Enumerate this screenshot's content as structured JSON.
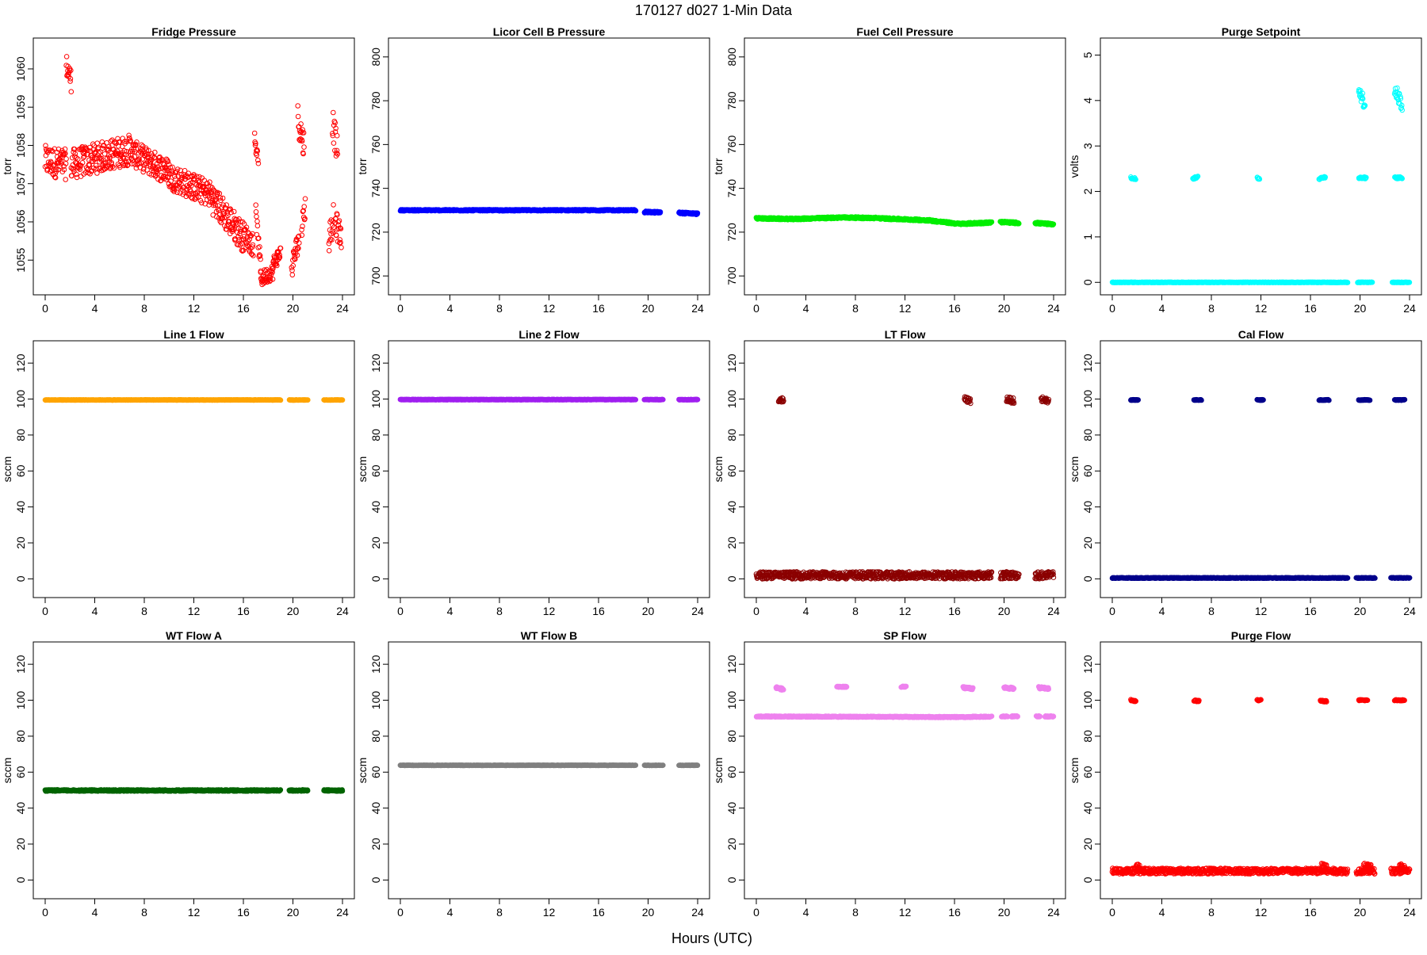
{
  "title": "170127   d027   1-Min Data",
  "xlabel": "Hours (UTC)",
  "chart_data": [
    {
      "type": "scatter",
      "title": "Fridge Pressure",
      "ylabel": "torr",
      "xlim": [
        0,
        24
      ],
      "ylim": [
        1054.3,
        1060.6
      ],
      "xticks": [
        "0",
        "4",
        "8",
        "12",
        "16",
        "20",
        "24"
      ],
      "yticks": [
        "1055",
        "1056",
        "1057",
        "1058",
        "1059",
        "1060"
      ],
      "color": "#ff0000",
      "filled": false,
      "segments": [
        {
          "x0": 0,
          "x1": 1.7,
          "y0": 1057.6,
          "y1": 1057.5,
          "noise": 0.4
        },
        {
          "x0": 1.7,
          "x1": 2.1,
          "y0": 1060.1,
          "y1": 1059.7,
          "noise": 0.3
        },
        {
          "x0": 2.1,
          "x1": 7.0,
          "y0": 1057.5,
          "y1": 1057.9,
          "noise": 0.4
        },
        {
          "x0": 7.0,
          "x1": 10.0,
          "y0": 1057.8,
          "y1": 1057.3,
          "noise": 0.35
        },
        {
          "x0": 10.0,
          "x1": 13.5,
          "y0": 1057.2,
          "y1": 1056.7,
          "noise": 0.35
        },
        {
          "x0": 13.5,
          "x1": 16.0,
          "y0": 1056.6,
          "y1": 1055.6,
          "noise": 0.4
        },
        {
          "x0": 16.0,
          "x1": 16.8,
          "y0": 1055.7,
          "y1": 1055.4,
          "noise": 0.3
        },
        {
          "x0": 16.9,
          "x1": 17.2,
          "y0": 1058.1,
          "y1": 1057.8,
          "noise": 0.3
        },
        {
          "x0": 17.0,
          "x1": 17.4,
          "y0": 1056.2,
          "y1": 1054.8,
          "noise": 0.25
        },
        {
          "x0": 17.4,
          "x1": 18.4,
          "y0": 1054.5,
          "y1": 1054.7,
          "noise": 0.2
        },
        {
          "x0": 18.4,
          "x1": 19.0,
          "y0": 1054.9,
          "y1": 1055.2,
          "noise": 0.2
        },
        {
          "x0": 19.9,
          "x1": 20.5,
          "y0": 1054.8,
          "y1": 1055.6,
          "noise": 0.3
        },
        {
          "x0": 20.4,
          "x1": 20.9,
          "y0": 1058.7,
          "y1": 1058.0,
          "noise": 0.4
        },
        {
          "x0": 20.7,
          "x1": 21.0,
          "y0": 1055.9,
          "y1": 1056.4,
          "noise": 0.3
        },
        {
          "x0": 22.9,
          "x1": 23.3,
          "y0": 1055.5,
          "y1": 1056.2,
          "noise": 0.4
        },
        {
          "x0": 23.2,
          "x1": 23.6,
          "y0": 1058.6,
          "y1": 1057.8,
          "noise": 0.4
        },
        {
          "x0": 23.4,
          "x1": 23.9,
          "y0": 1056.0,
          "y1": 1055.6,
          "noise": 0.35
        }
      ]
    },
    {
      "type": "scatter",
      "title": "Licor Cell B Pressure",
      "ylabel": "torr",
      "xlim": [
        0,
        24
      ],
      "ylim": [
        695,
        805
      ],
      "xticks": [
        "0",
        "4",
        "8",
        "12",
        "16",
        "20",
        "24"
      ],
      "yticks": [
        "700",
        "720",
        "740",
        "760",
        "780",
        "800"
      ],
      "color": "#0000ff",
      "filled": true,
      "segments": [
        {
          "x0": 0,
          "x1": 19.0,
          "y0": 730,
          "y1": 730,
          "noise": 0.3
        },
        {
          "x0": 19.7,
          "x1": 21.0,
          "y0": 729.2,
          "y1": 729.0,
          "noise": 0.4
        },
        {
          "x0": 22.5,
          "x1": 24.0,
          "y0": 728.8,
          "y1": 728.4,
          "noise": 0.4
        }
      ]
    },
    {
      "type": "scatter",
      "title": "Fuel Cell Pressure",
      "ylabel": "torr",
      "xlim": [
        0,
        24
      ],
      "ylim": [
        695,
        805
      ],
      "xticks": [
        "0",
        "4",
        "8",
        "12",
        "16",
        "20",
        "24"
      ],
      "yticks": [
        "700",
        "720",
        "740",
        "760",
        "780",
        "800"
      ],
      "color": "#00ee00",
      "filled": true,
      "segments": [
        {
          "x0": 0,
          "x1": 3.0,
          "y0": 726.3,
          "y1": 726.0,
          "noise": 0.4
        },
        {
          "x0": 3.0,
          "x1": 7.0,
          "y0": 726.0,
          "y1": 726.7,
          "noise": 0.4
        },
        {
          "x0": 7.0,
          "x1": 10.0,
          "y0": 726.7,
          "y1": 726.4,
          "noise": 0.4
        },
        {
          "x0": 10.0,
          "x1": 14.0,
          "y0": 726.3,
          "y1": 725.4,
          "noise": 0.4
        },
        {
          "x0": 14.0,
          "x1": 16.5,
          "y0": 725.3,
          "y1": 723.7,
          "noise": 0.4
        },
        {
          "x0": 16.5,
          "x1": 19.0,
          "y0": 723.8,
          "y1": 724.4,
          "noise": 0.4
        },
        {
          "x0": 19.7,
          "x1": 21.2,
          "y0": 724.6,
          "y1": 724.2,
          "noise": 0.4
        },
        {
          "x0": 22.5,
          "x1": 24.0,
          "y0": 724.2,
          "y1": 723.6,
          "noise": 0.4
        }
      ]
    },
    {
      "type": "scatter",
      "title": "Purge Setpoint",
      "ylabel": "volts",
      "xlim": [
        0,
        24
      ],
      "ylim": [
        -0.1,
        5.2
      ],
      "xticks": [
        "0",
        "4",
        "8",
        "12",
        "16",
        "20",
        "24"
      ],
      "yticks": [
        "0",
        "1",
        "2",
        "3",
        "4",
        "5"
      ],
      "color": "#00ffff",
      "filled": false,
      "segments": [
        {
          "x0": 0,
          "x1": 19.0,
          "y0": 0,
          "y1": 0,
          "noise": 0.005
        },
        {
          "x0": 19.8,
          "x1": 21.0,
          "y0": 0,
          "y1": 0,
          "noise": 0.005
        },
        {
          "x0": 22.6,
          "x1": 24.0,
          "y0": 0,
          "y1": 0,
          "noise": 0.005
        },
        {
          "x0": 1.5,
          "x1": 1.9,
          "y0": 2.3,
          "y1": 2.28,
          "noise": 0.02
        },
        {
          "x0": 6.5,
          "x1": 6.9,
          "y0": 2.28,
          "y1": 2.32,
          "noise": 0.02
        },
        {
          "x0": 11.7,
          "x1": 11.9,
          "y0": 2.3,
          "y1": 2.28,
          "noise": 0.02
        },
        {
          "x0": 16.7,
          "x1": 17.2,
          "y0": 2.28,
          "y1": 2.32,
          "noise": 0.02
        },
        {
          "x0": 19.9,
          "x1": 20.5,
          "y0": 2.3,
          "y1": 2.3,
          "noise": 0.02
        },
        {
          "x0": 22.8,
          "x1": 23.4,
          "y0": 2.3,
          "y1": 2.3,
          "noise": 0.02
        },
        {
          "x0": 19.9,
          "x1": 20.4,
          "y0": 4.25,
          "y1": 3.9,
          "noise": 0.15
        },
        {
          "x0": 22.8,
          "x1": 23.4,
          "y0": 4.25,
          "y1": 3.9,
          "noise": 0.15
        }
      ]
    },
    {
      "type": "scatter",
      "title": "Line 1 Flow",
      "ylabel": "sccm",
      "xlim": [
        0,
        24
      ],
      "ylim": [
        -6,
        128
      ],
      "xticks": [
        "0",
        "4",
        "8",
        "12",
        "16",
        "20",
        "24"
      ],
      "yticks": [
        "0",
        "20",
        "40",
        "60",
        "80",
        "100",
        "120"
      ],
      "color": "#ffa500",
      "filled": true,
      "segments": [
        {
          "x0": 0,
          "x1": 19.0,
          "y0": 99.5,
          "y1": 99.5,
          "noise": 0.1
        },
        {
          "x0": 19.7,
          "x1": 21.2,
          "y0": 99.5,
          "y1": 99.5,
          "noise": 0.1
        },
        {
          "x0": 22.5,
          "x1": 24.0,
          "y0": 99.5,
          "y1": 99.5,
          "noise": 0.1
        }
      ]
    },
    {
      "type": "scatter",
      "title": "Line 2 Flow",
      "ylabel": "sccm",
      "xlim": [
        0,
        24
      ],
      "ylim": [
        -6,
        128
      ],
      "xticks": [
        "0",
        "4",
        "8",
        "12",
        "16",
        "20",
        "24"
      ],
      "yticks": [
        "0",
        "20",
        "40",
        "60",
        "80",
        "100",
        "120"
      ],
      "color": "#a020f0",
      "filled": true,
      "segments": [
        {
          "x0": 0,
          "x1": 19.0,
          "y0": 99.7,
          "y1": 99.7,
          "noise": 0.15
        },
        {
          "x0": 19.7,
          "x1": 21.2,
          "y0": 99.7,
          "y1": 99.7,
          "noise": 0.15
        },
        {
          "x0": 22.5,
          "x1": 24.0,
          "y0": 99.7,
          "y1": 99.7,
          "noise": 0.15
        }
      ]
    },
    {
      "type": "scatter",
      "title": "LT Flow",
      "ylabel": "sccm",
      "xlim": [
        0,
        24
      ],
      "ylim": [
        -6,
        128
      ],
      "xticks": [
        "0",
        "4",
        "8",
        "12",
        "16",
        "20",
        "24"
      ],
      "yticks": [
        "0",
        "20",
        "40",
        "60",
        "80",
        "100",
        "120"
      ],
      "color": "#8b0000",
      "filled": false,
      "segments": [
        {
          "x0": 0,
          "x1": 19.0,
          "y0": 2,
          "y1": 2,
          "noise": 2.0
        },
        {
          "x0": 19.7,
          "x1": 21.2,
          "y0": 2,
          "y1": 2,
          "noise": 2.0
        },
        {
          "x0": 22.5,
          "x1": 24.0,
          "y0": 2,
          "y1": 2,
          "noise": 2.0
        },
        {
          "x0": 1.8,
          "x1": 2.2,
          "y0": 100,
          "y1": 99,
          "noise": 1.5
        },
        {
          "x0": 16.8,
          "x1": 17.3,
          "y0": 100,
          "y1": 99,
          "noise": 1.5
        },
        {
          "x0": 20.2,
          "x1": 20.8,
          "y0": 100,
          "y1": 99,
          "noise": 1.5
        },
        {
          "x0": 23.0,
          "x1": 23.6,
          "y0": 100,
          "y1": 99,
          "noise": 1.5
        }
      ]
    },
    {
      "type": "scatter",
      "title": "Cal Flow",
      "ylabel": "sccm",
      "xlim": [
        0,
        24
      ],
      "ylim": [
        -6,
        128
      ],
      "xticks": [
        "0",
        "4",
        "8",
        "12",
        "16",
        "20",
        "24"
      ],
      "yticks": [
        "0",
        "20",
        "40",
        "60",
        "80",
        "100",
        "120"
      ],
      "color": "#00008b",
      "filled": true,
      "segments": [
        {
          "x0": 0,
          "x1": 19.0,
          "y0": 0.5,
          "y1": 0.5,
          "noise": 0.2
        },
        {
          "x0": 19.7,
          "x1": 21.2,
          "y0": 0.5,
          "y1": 0.5,
          "noise": 0.2
        },
        {
          "x0": 22.5,
          "x1": 24.0,
          "y0": 0.5,
          "y1": 0.5,
          "noise": 0.2
        },
        {
          "x0": 1.5,
          "x1": 2.1,
          "y0": 99.5,
          "y1": 99.5,
          "noise": 0.2
        },
        {
          "x0": 6.6,
          "x1": 7.2,
          "y0": 99.5,
          "y1": 99.5,
          "noise": 0.2
        },
        {
          "x0": 11.7,
          "x1": 12.2,
          "y0": 99.5,
          "y1": 99.5,
          "noise": 0.2
        },
        {
          "x0": 16.7,
          "x1": 17.5,
          "y0": 99.5,
          "y1": 99.5,
          "noise": 0.2
        },
        {
          "x0": 19.9,
          "x1": 20.8,
          "y0": 99.5,
          "y1": 99.5,
          "noise": 0.2
        },
        {
          "x0": 22.8,
          "x1": 23.6,
          "y0": 99.5,
          "y1": 99.5,
          "noise": 0.2
        }
      ]
    },
    {
      "type": "scatter",
      "title": "WT Flow A",
      "ylabel": "sccm",
      "xlim": [
        0,
        24
      ],
      "ylim": [
        -6,
        128
      ],
      "xticks": [
        "0",
        "4",
        "8",
        "12",
        "16",
        "20",
        "24"
      ],
      "yticks": [
        "0",
        "20",
        "40",
        "60",
        "80",
        "100",
        "120"
      ],
      "color": "#006400",
      "filled": true,
      "segments": [
        {
          "x0": 0,
          "x1": 19.0,
          "y0": 49.8,
          "y1": 49.8,
          "noise": 0.4
        },
        {
          "x0": 19.7,
          "x1": 21.2,
          "y0": 49.8,
          "y1": 49.8,
          "noise": 0.4
        },
        {
          "x0": 22.5,
          "x1": 24.0,
          "y0": 49.8,
          "y1": 49.8,
          "noise": 0.4
        }
      ]
    },
    {
      "type": "scatter",
      "title": "WT Flow B",
      "ylabel": "sccm",
      "xlim": [
        0,
        24
      ],
      "ylim": [
        -6,
        128
      ],
      "xticks": [
        "0",
        "4",
        "8",
        "12",
        "16",
        "20",
        "24"
      ],
      "yticks": [
        "0",
        "20",
        "40",
        "60",
        "80",
        "100",
        "120"
      ],
      "color": "#808080",
      "filled": true,
      "segments": [
        {
          "x0": 0,
          "x1": 19.0,
          "y0": 63.8,
          "y1": 63.8,
          "noise": 0.1
        },
        {
          "x0": 19.7,
          "x1": 21.2,
          "y0": 63.8,
          "y1": 63.8,
          "noise": 0.1
        },
        {
          "x0": 22.5,
          "x1": 24.0,
          "y0": 63.8,
          "y1": 63.8,
          "noise": 0.1
        }
      ]
    },
    {
      "type": "scatter",
      "title": "SP Flow",
      "ylabel": "sccm",
      "xlim": [
        0,
        24
      ],
      "ylim": [
        -6,
        128
      ],
      "xticks": [
        "0",
        "4",
        "8",
        "12",
        "16",
        "20",
        "24"
      ],
      "yticks": [
        "0",
        "20",
        "40",
        "60",
        "80",
        "100",
        "120"
      ],
      "color": "#ee82ee",
      "filled": true,
      "segments": [
        {
          "x0": 0,
          "x1": 17.5,
          "y0": 91,
          "y1": 90.6,
          "noise": 0.3
        },
        {
          "x0": 17.5,
          "x1": 19.0,
          "y0": 90.8,
          "y1": 90.8,
          "noise": 0.3
        },
        {
          "x0": 19.8,
          "x1": 20.3,
          "y0": 91,
          "y1": 91,
          "noise": 0.3
        },
        {
          "x0": 20.6,
          "x1": 21.1,
          "y0": 91,
          "y1": 91,
          "noise": 0.3
        },
        {
          "x0": 22.6,
          "x1": 22.9,
          "y0": 91,
          "y1": 91,
          "noise": 0.3
        },
        {
          "x0": 23.3,
          "x1": 24.0,
          "y0": 91,
          "y1": 91,
          "noise": 0.3
        },
        {
          "x0": 1.6,
          "x1": 2.2,
          "y0": 107,
          "y1": 106,
          "noise": 0.6
        },
        {
          "x0": 6.5,
          "x1": 7.3,
          "y0": 107.5,
          "y1": 107.5,
          "noise": 0.3
        },
        {
          "x0": 11.7,
          "x1": 12.1,
          "y0": 107.5,
          "y1": 107.5,
          "noise": 0.3
        },
        {
          "x0": 16.7,
          "x1": 17.5,
          "y0": 107,
          "y1": 106.5,
          "noise": 0.6
        },
        {
          "x0": 20.0,
          "x1": 20.8,
          "y0": 107,
          "y1": 106.5,
          "noise": 0.6
        },
        {
          "x0": 22.8,
          "x1": 23.6,
          "y0": 107,
          "y1": 106.5,
          "noise": 0.6
        }
      ]
    },
    {
      "type": "scatter",
      "title": "Purge Flow",
      "ylabel": "sccm",
      "xlim": [
        0,
        24
      ],
      "ylim": [
        -6,
        128
      ],
      "xticks": [
        "0",
        "4",
        "8",
        "12",
        "16",
        "20",
        "24"
      ],
      "yticks": [
        "0",
        "20",
        "40",
        "60",
        "80",
        "100",
        "120"
      ],
      "color": "#ff0000",
      "filled": false,
      "segments": [
        {
          "x0": 0,
          "x1": 19.0,
          "y0": 5,
          "y1": 5,
          "noise": 1.6
        },
        {
          "x0": 19.7,
          "x1": 21.2,
          "y0": 5,
          "y1": 5,
          "noise": 1.6
        },
        {
          "x0": 22.5,
          "x1": 24.0,
          "y0": 5,
          "y1": 5,
          "noise": 1.6
        },
        {
          "x0": 1.9,
          "x1": 2.2,
          "y0": 8,
          "y1": 7,
          "noise": 1.5
        },
        {
          "x0": 16.9,
          "x1": 17.3,
          "y0": 8,
          "y1": 7,
          "noise": 1.5
        },
        {
          "x0": 20.3,
          "x1": 20.9,
          "y0": 8,
          "y1": 7,
          "noise": 1.5
        },
        {
          "x0": 23.2,
          "x1": 23.7,
          "y0": 8,
          "y1": 7,
          "noise": 1.5
        },
        {
          "x0": 1.5,
          "x1": 1.9,
          "y0": 100,
          "y1": 99.5,
          "noise": 0.4
        },
        {
          "x0": 6.6,
          "x1": 7.0,
          "y0": 99.8,
          "y1": 99.5,
          "noise": 0.4
        },
        {
          "x0": 11.7,
          "x1": 12.0,
          "y0": 100,
          "y1": 100,
          "noise": 0.4
        },
        {
          "x0": 16.8,
          "x1": 17.3,
          "y0": 99.8,
          "y1": 99.3,
          "noise": 0.4
        },
        {
          "x0": 19.9,
          "x1": 20.6,
          "y0": 100,
          "y1": 100,
          "noise": 0.3
        },
        {
          "x0": 22.8,
          "x1": 23.6,
          "y0": 100,
          "y1": 100,
          "noise": 0.3
        }
      ]
    }
  ]
}
